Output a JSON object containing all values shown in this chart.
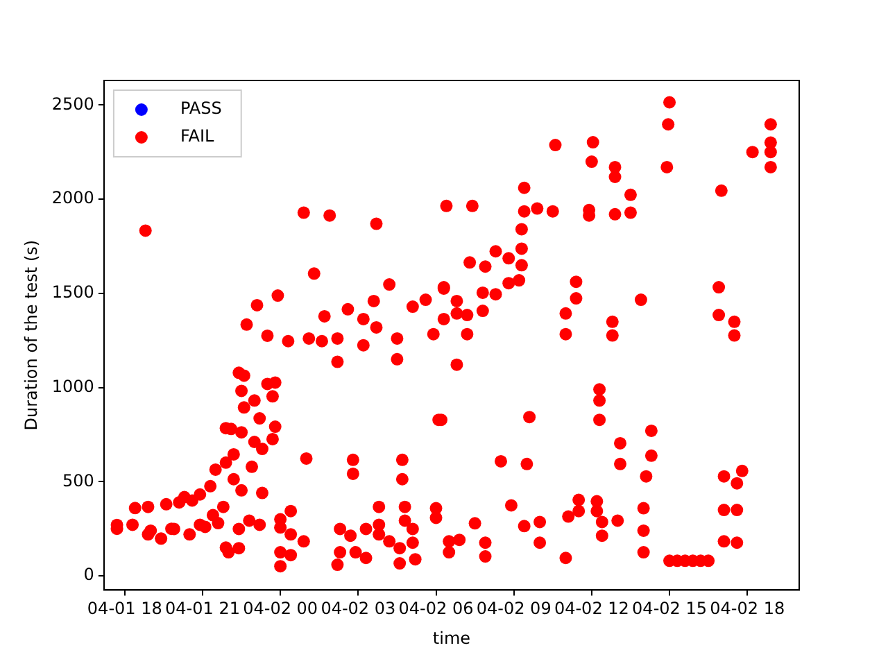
{
  "chart_data": {
    "type": "scatter",
    "xlabel": "time",
    "ylabel": "Duration of the test (s)",
    "xlim": [
      "--04-01T17:12",
      "--04-02T20:00"
    ],
    "ylim": [
      -75,
      2630
    ],
    "xticks": [
      {
        "value": "--04-01T18:00",
        "label": "04-01 18"
      },
      {
        "value": "--04-01T21:00",
        "label": "04-01 21"
      },
      {
        "value": "--04-02T00:00",
        "label": "04-02 00"
      },
      {
        "value": "--04-02T03:00",
        "label": "04-02 03"
      },
      {
        "value": "--04-02T06:00",
        "label": "04-02 06"
      },
      {
        "value": "--04-02T09:00",
        "label": "04-02 09"
      },
      {
        "value": "--04-02T12:00",
        "label": "04-02 12"
      },
      {
        "value": "--04-02T15:00",
        "label": "04-02 15"
      },
      {
        "value": "--04-02T18:00",
        "label": "04-02 18"
      }
    ],
    "yticks": [
      0,
      500,
      1000,
      1500,
      2000,
      2500
    ],
    "grid": false,
    "legend": "top left",
    "marker": "circle",
    "series": [
      {
        "name": "PASS",
        "color": "#0000ff"
      },
      {
        "name": "FAIL",
        "color": "#ff0000",
        "x": [
          "--04-01T17:42",
          "--04-01T17:42",
          "--04-01T18:18",
          "--04-01T18:24",
          "--04-01T18:48",
          "--04-01T18:54",
          "--04-01T18:54",
          "--04-01T19:00",
          "--04-01T19:24",
          "--04-01T19:36",
          "--04-01T19:48",
          "--04-01T19:54",
          "--04-01T20:06",
          "--04-01T20:18",
          "--04-01T20:30",
          "--04-01T20:36",
          "--04-01T20:54",
          "--04-01T20:54",
          "--04-01T21:06",
          "--04-01T21:18",
          "--04-01T21:24",
          "--04-01T21:30",
          "--04-01T21:36",
          "--04-01T21:48",
          "--04-01T21:54",
          "--04-01T21:54",
          "--04-01T21:54",
          "--04-01T22:00",
          "--04-01T22:06",
          "--04-01T22:12",
          "--04-01T22:12",
          "--04-01T22:24",
          "--04-01T22:24",
          "--04-01T22:24",
          "--04-01T22:30",
          "--04-01T22:30",
          "--04-01T22:30",
          "--04-01T22:36",
          "--04-01T22:36",
          "--04-01T22:42",
          "--04-01T22:48",
          "--04-01T22:54",
          "--04-01T23:00",
          "--04-01T23:00",
          "--04-01T23:06",
          "--04-01T23:12",
          "--04-01T23:12",
          "--04-01T23:18",
          "--04-01T23:18",
          "--04-01T23:30",
          "--04-01T23:30",
          "--04-01T23:42",
          "--04-01T23:42",
          "--04-01T23:48",
          "--04-01T23:48",
          "--04-01T23:54",
          "--04-02T00:00",
          "--04-02T00:00",
          "--04-02T00:00",
          "--04-02T00:00",
          "--04-02T00:18",
          "--04-02T00:24",
          "--04-02T00:24",
          "--04-02T00:24",
          "--04-02T00:54",
          "--04-02T00:54",
          "--04-02T01:00",
          "--04-02T01:06",
          "--04-02T01:18",
          "--04-02T01:36",
          "--04-02T01:42",
          "--04-02T01:54",
          "--04-02T02:12",
          "--04-02T02:12",
          "--04-02T02:12",
          "--04-02T02:18",
          "--04-02T02:18",
          "--04-02T02:36",
          "--04-02T02:42",
          "--04-02T02:48",
          "--04-02T02:48",
          "--04-02T02:54",
          "--04-02T03:12",
          "--04-02T03:12",
          "--04-02T03:18",
          "--04-02T03:18",
          "--04-02T03:36",
          "--04-02T03:42",
          "--04-02T03:42",
          "--04-02T03:48",
          "--04-02T03:48",
          "--04-02T03:48",
          "--04-02T04:12",
          "--04-02T04:12",
          "--04-02T04:30",
          "--04-02T04:30",
          "--04-02T04:36",
          "--04-02T04:36",
          "--04-02T04:42",
          "--04-02T04:42",
          "--04-02T04:48",
          "--04-02T04:48",
          "--04-02T05:06",
          "--04-02T05:06",
          "--04-02T05:06",
          "--04-02T05:12",
          "--04-02T05:36",
          "--04-02T05:54",
          "--04-02T06:00",
          "--04-02T06:00",
          "--04-02T06:06",
          "--04-02T06:12",
          "--04-02T06:18",
          "--04-02T06:18",
          "--04-02T06:18",
          "--04-02T06:24",
          "--04-02T06:30",
          "--04-02T06:30",
          "--04-02T06:48",
          "--04-02T06:48",
          "--04-02T06:48",
          "--04-02T06:54",
          "--04-02T07:12",
          "--04-02T07:12",
          "--04-02T07:18",
          "--04-02T07:24",
          "--04-02T07:30",
          "--04-02T07:48",
          "--04-02T07:48",
          "--04-02T07:54",
          "--04-02T07:54",
          "--04-02T07:54",
          "--04-02T08:18",
          "--04-02T08:18",
          "--04-02T08:30",
          "--04-02T08:48",
          "--04-02T08:48",
          "--04-02T08:54",
          "--04-02T09:12",
          "--04-02T09:18",
          "--04-02T09:18",
          "--04-02T09:18",
          "--04-02T09:24",
          "--04-02T09:24",
          "--04-02T09:24",
          "--04-02T09:30",
          "--04-02T09:36",
          "--04-02T09:54",
          "--04-02T10:00",
          "--04-02T10:00",
          "--04-02T10:30",
          "--04-02T10:36",
          "--04-02T11:00",
          "--04-02T11:00",
          "--04-02T11:00",
          "--04-02T11:06",
          "--04-02T11:24",
          "--04-02T11:24",
          "--04-02T11:30",
          "--04-02T11:30",
          "--04-02T11:54",
          "--04-02T11:54",
          "--04-02T12:00",
          "--04-02T12:03",
          "--04-02T12:12",
          "--04-02T12:12",
          "--04-02T12:18",
          "--04-02T12:18",
          "--04-02T12:18",
          "--04-02T12:24",
          "--04-02T12:24",
          "--04-02T12:48",
          "--04-02T12:48",
          "--04-02T12:54",
          "--04-02T12:54",
          "--04-02T12:54",
          "--04-02T13:00",
          "--04-02T13:06",
          "--04-02T13:06",
          "--04-02T13:30",
          "--04-02T13:30",
          "--04-02T13:54",
          "--04-02T14:00",
          "--04-02T14:00",
          "--04-02T14:00",
          "--04-02T14:06",
          "--04-02T14:18",
          "--04-02T14:18",
          "--04-02T14:54",
          "--04-02T14:57",
          "--04-02T15:00",
          "--04-02T15:00",
          "--04-02T15:18",
          "--04-02T15:36",
          "--04-02T15:54",
          "--04-02T16:12",
          "--04-02T16:30",
          "--04-02T16:54",
          "--04-02T16:54",
          "--04-02T17:00",
          "--04-02T17:06",
          "--04-02T17:06",
          "--04-02T17:06",
          "--04-02T17:30",
          "--04-02T17:30",
          "--04-02T17:36",
          "--04-02T17:36",
          "--04-02T17:36",
          "--04-02T17:48",
          "--04-02T18:12",
          "--04-02T18:54",
          "--04-02T18:54",
          "--04-02T18:54",
          "--04-02T18:54"
        ],
        "values": [
          270,
          250,
          271,
          360,
          1833,
          366,
          220,
          240,
          198,
          380,
          250,
          249,
          390,
          418,
          220,
          400,
          432,
          271,
          260,
          476,
          322,
          564,
          280,
          366,
          784,
          601,
          150,
          125,
          780,
          645,
          513,
          1078,
          147,
          249,
          982,
          762,
          454,
          1063,
          894,
          1334,
          293,
          579,
          931,
          711,
          1437,
          836,
          271,
          674,
          440,
          1019,
          1275,
          726,
          953,
          1026,
          792,
          1488,
          257,
          125,
          51,
          300,
          1246,
          344,
          220,
          110,
          1928,
          183,
          623,
          1260,
          1605,
          1246,
          1378,
          1913,
          1260,
          1136,
          59,
          249,
          125,
          1415,
          213,
          616,
          542,
          125,
          1224,
          1363,
          249,
          95,
          1459,
          1869,
          1319,
          366,
          271,
          220,
          1547,
          183,
          1260,
          1150,
          147,
          66,
          616,
          513,
          366,
          293,
          249,
          176,
          1429,
          88,
          1466,
          1283,
          359,
          308,
          828,
          828,
          1525,
          1363,
          1532,
          1964,
          183,
          125,
          1121,
          1459,
          1393,
          191,
          1385,
          1283,
          1664,
          1964,
          279,
          1503,
          1407,
          1642,
          176,
          103,
          1723,
          1495,
          608,
          1686,
          1554,
          374,
          1569,
          1840,
          1737,
          1649,
          2060,
          1935,
          264,
          594,
          843,
          1950,
          286,
          176,
          1935,
          2287,
          1393,
          1283,
          95,
          315,
          1561,
          1473,
          403,
          344,
          1942,
          1913,
          2199,
          2302,
          396,
          344,
          990,
          931,
          828,
          286,
          213,
          1349,
          1276,
          2170,
          2118,
          1920,
          293,
          704,
          594,
          2023,
          1928,
          1466,
          359,
          240,
          125,
          528,
          770,
          638,
          2170,
          2397,
          2514,
          80,
          80,
          80,
          80,
          80,
          80,
          1532,
          1385,
          2045,
          528,
          350,
          183,
          1349,
          1276,
          491,
          350,
          176,
          557,
          2250,
          2397,
          2300,
          2250,
          2170
        ]
      }
    ]
  }
}
